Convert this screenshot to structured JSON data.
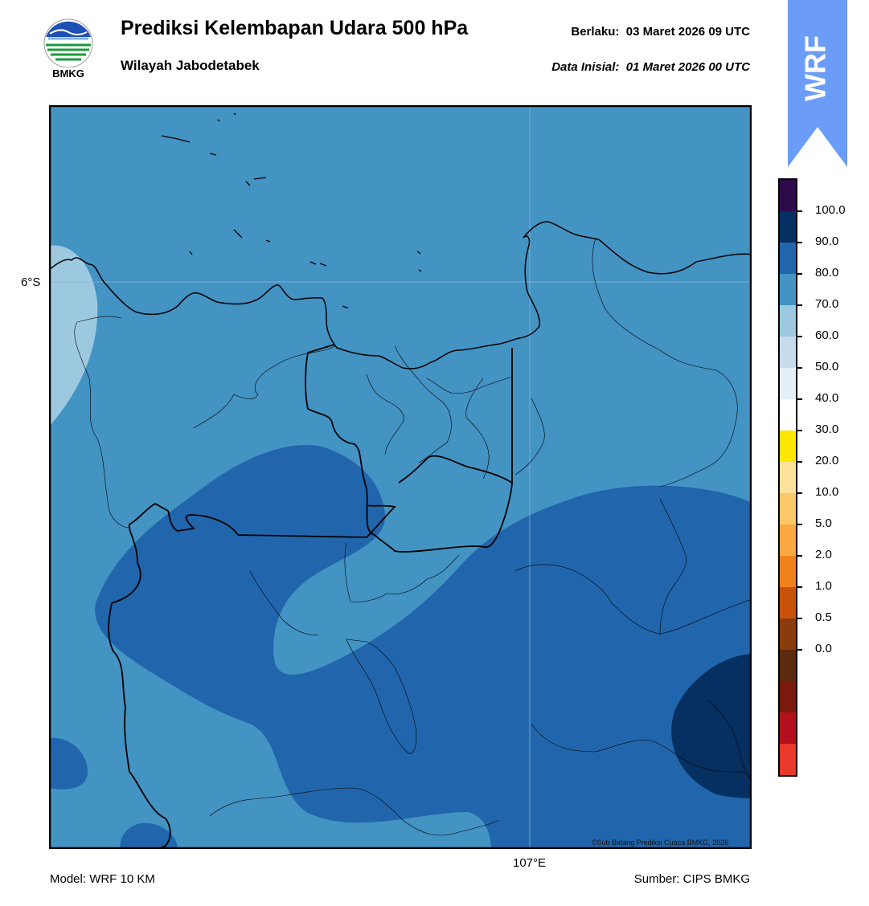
{
  "header": {
    "title": "Prediksi Kelembapan Udara 500 hPa",
    "region": "Wilayah Jabodetabek",
    "valid_label": "Berlaku:",
    "valid_value": "03 Maret 2026 09 UTC",
    "init_label": "Data Inisial:",
    "init_value": "01 Maret 2026 00 UTC"
  },
  "logo": {
    "text": "BMKG",
    "icon": "bmkg-logo-icon"
  },
  "banner": {
    "text": "WRF",
    "color": "#6b9cf7"
  },
  "map": {
    "lat_label": "6°S",
    "lon_label": "107°E",
    "copyright": "©Sub Bidang Prediksi Cuaca BMKG, 2026"
  },
  "footer": {
    "model": "Model: WRF 10 KM",
    "source": "Sumber: CIPS BMKG"
  },
  "colorbar": {
    "ticks": [
      "100.0",
      "90.0",
      "80.0",
      "70.0",
      "60.0",
      "50.0",
      "40.0",
      "30.0",
      "20.0",
      "10.0",
      "5.0",
      "2.0",
      "1.0",
      "0.5",
      "0.0"
    ],
    "colors": [
      "#e8392b",
      "#b2101c",
      "#7a1a0c",
      "#5c2a0e",
      "#8b3c0c",
      "#c9520a",
      "#f0821e",
      "#f9a941",
      "#fcc868",
      "#fde19a",
      "#fde700",
      "#ffffff",
      "#e4eff8",
      "#c6dcec",
      "#9dc9e0",
      "#4393c3",
      "#2166ac",
      "#053061",
      "#2d0a4a"
    ]
  },
  "fields": {
    "colors": {
      "c70_80": "#4393c3",
      "c80_90": "#2166ac",
      "c90_100": "#053061",
      "c60_70": "#9dc9e0"
    }
  }
}
